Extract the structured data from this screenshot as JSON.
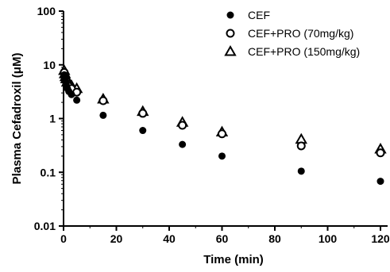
{
  "chart_data": {
    "type": "scatter",
    "title": "",
    "xlabel": "Time (min)",
    "ylabel": "Plasma Cefadroxil (μM)",
    "y_scale": "log",
    "xlim": [
      0,
      125
    ],
    "ylim": [
      0.01,
      100
    ],
    "x_ticks": [
      0,
      20,
      40,
      60,
      80,
      100,
      120
    ],
    "x_tick_labels": [
      "0",
      "20",
      "40",
      "60",
      "80",
      "100",
      "120"
    ],
    "y_ticks": [
      0.01,
      0.1,
      1,
      10,
      100
    ],
    "y_tick_labels": [
      "0.01",
      "0.1",
      "1",
      "10",
      "100"
    ],
    "grid": false,
    "legend_position": "top-right",
    "series": [
      {
        "name": "CEF",
        "marker": "filled-circle",
        "x": [
          0.25,
          0.5,
          0.75,
          1,
          1.5,
          2,
          3,
          5,
          15,
          30,
          45,
          60,
          90,
          120
        ],
        "y": [
          6.5,
          5.5,
          4.8,
          4.2,
          3.6,
          3.2,
          2.8,
          2.2,
          1.15,
          0.6,
          0.33,
          0.2,
          0.105,
          0.068
        ]
      },
      {
        "name": "CEF+PRO (70mg/kg)",
        "marker": "open-circle",
        "x": [
          0.25,
          0.5,
          0.75,
          1,
          1.5,
          2,
          3,
          5,
          15,
          30,
          45,
          60,
          90,
          120
        ],
        "y": [
          7.2,
          6.2,
          5.5,
          5.0,
          4.4,
          4.0,
          3.6,
          3.1,
          2.15,
          1.25,
          0.75,
          0.52,
          0.31,
          0.23
        ]
      },
      {
        "name": "CEF+PRO (150mg/kg)",
        "marker": "open-triangle",
        "x": [
          0.25,
          0.5,
          0.75,
          1,
          1.5,
          2,
          3,
          5,
          15,
          30,
          45,
          60,
          90,
          120
        ],
        "y": [
          7.8,
          6.8,
          6.0,
          5.5,
          4.9,
          4.5,
          4.1,
          3.6,
          2.3,
          1.35,
          0.85,
          0.56,
          0.41,
          0.27
        ]
      }
    ]
  }
}
